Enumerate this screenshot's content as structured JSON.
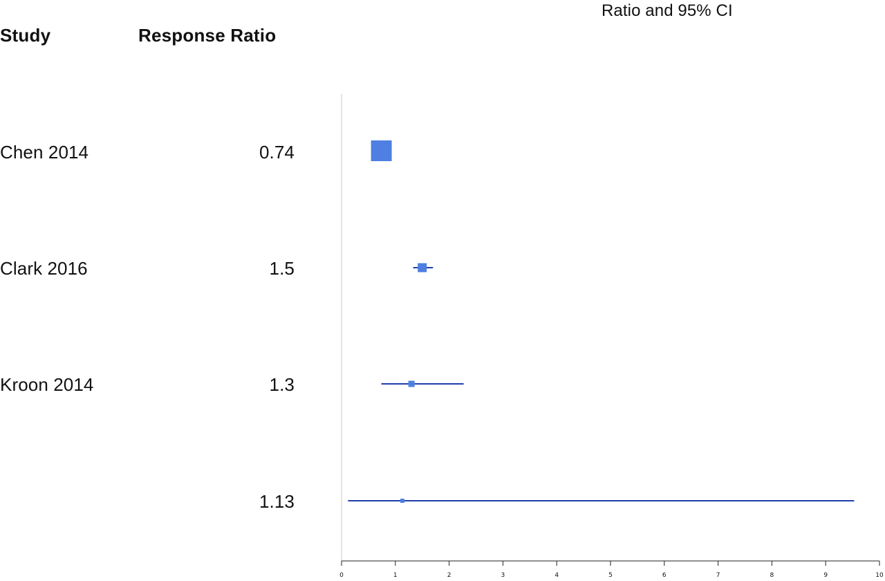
{
  "chart_data": {
    "type": "forest",
    "title": "Ratio and 95% CI",
    "columns": {
      "study": "Study",
      "ratio": "Response Ratio"
    },
    "rows": [
      {
        "study": "Chen 2014",
        "ratio_label": "0.74",
        "estimate": 0.74,
        "ci_low": 0.55,
        "ci_high": 0.93,
        "weight": 1.0
      },
      {
        "study": "Clark 2016",
        "ratio_label": "1.5",
        "estimate": 1.5,
        "ci_low": 1.33,
        "ci_high": 1.7,
        "weight": 0.42
      },
      {
        "study": "Kroon 2014",
        "ratio_label": "1.3",
        "estimate": 1.3,
        "ci_low": 0.74,
        "ci_high": 2.27,
        "weight": 0.3
      },
      {
        "study": "",
        "ratio_label": "1.13",
        "estimate": 1.13,
        "ci_low": 0.12,
        "ci_high": 9.53,
        "weight": 0.18
      }
    ],
    "x_ticks": [
      "0",
      "1",
      "2",
      "3",
      "4",
      "5",
      "6",
      "7",
      "8",
      "9",
      "10"
    ],
    "xlim": [
      0,
      10
    ],
    "reference_line": 0,
    "colors": {
      "box": "#4f7fe2",
      "ci_line": "#1f3ea8",
      "axis": "#222222",
      "reference": "#c8c8c8"
    }
  }
}
